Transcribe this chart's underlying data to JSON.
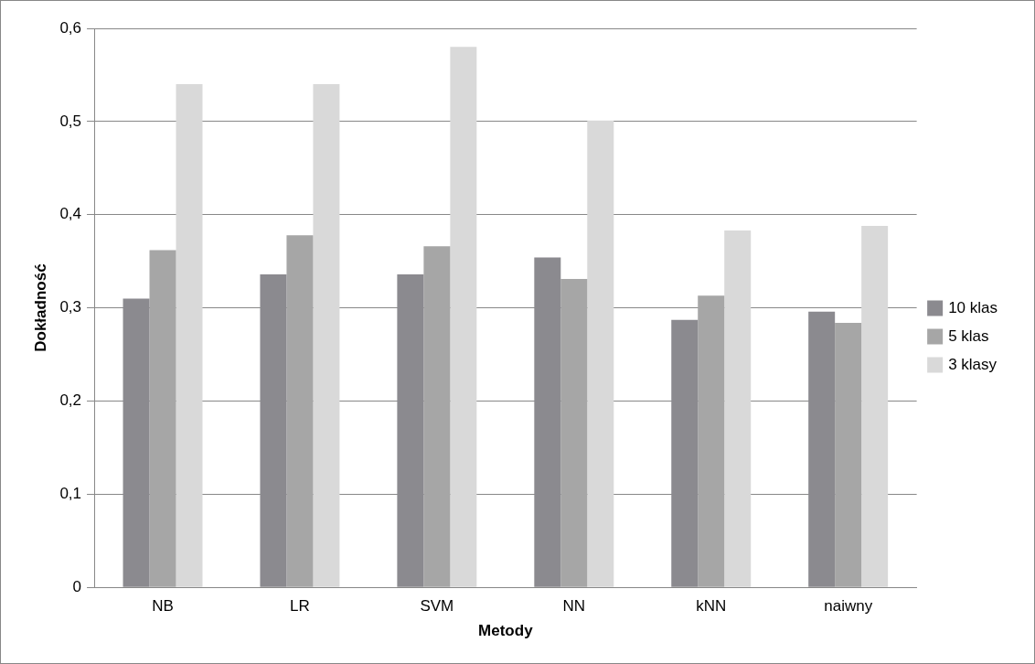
{
  "chart_data": {
    "type": "bar",
    "xlabel": "Metody",
    "ylabel": "Dokładność",
    "categories": [
      "NB",
      "LR",
      "SVM",
      "NN",
      "kNN",
      "naiwny"
    ],
    "series": [
      {
        "name": "10 klas",
        "color": "#8b8a8f",
        "values": [
          0.31,
          0.336,
          0.336,
          0.354,
          0.287,
          0.296
        ]
      },
      {
        "name": "5 klas",
        "color": "#a6a6a6",
        "values": [
          0.362,
          0.378,
          0.366,
          0.331,
          0.313,
          0.284
        ]
      },
      {
        "name": "3 klasy",
        "color": "#d9d9d9",
        "values": [
          0.54,
          0.54,
          0.58,
          0.501,
          0.383,
          0.388
        ]
      }
    ],
    "ylim": [
      0,
      0.6
    ],
    "yticks": [
      0,
      {
        "value": 0.1,
        "label": "0,1"
      },
      {
        "value": 0.2,
        "label": "0,2"
      },
      {
        "value": 0.3,
        "label": "0,3"
      },
      {
        "value": 0.4,
        "label": "0,4"
      },
      {
        "value": 0.5,
        "label": "0,5"
      },
      {
        "value": 0.6,
        "label": "0,6"
      }
    ],
    "grid": "y",
    "legend": "right"
  }
}
